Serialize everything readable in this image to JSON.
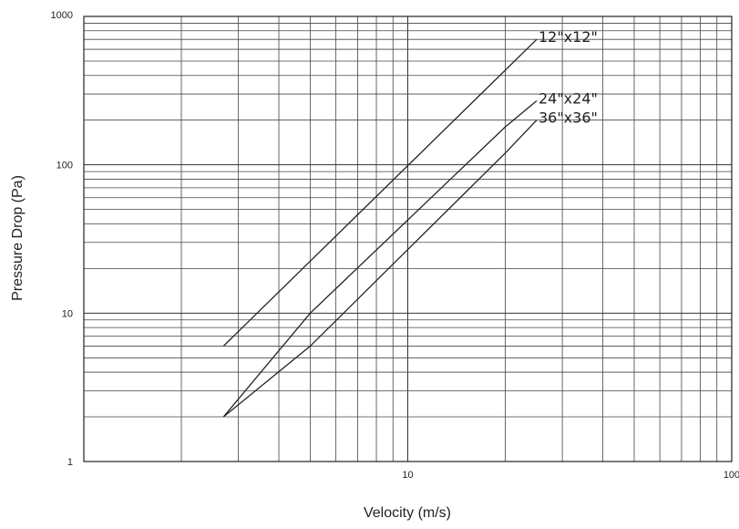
{
  "chart_data": {
    "type": "line",
    "title": "",
    "xlabel": "Velocity (m/s)",
    "ylabel": "Pressure Drop (Pa)",
    "x_scale": "log",
    "y_scale": "log",
    "xlim": [
      1,
      100
    ],
    "ylim": [
      1,
      1000
    ],
    "grid": true,
    "x_ticks": [
      {
        "value": 10,
        "label": "10"
      },
      {
        "value": 100,
        "label": "100"
      }
    ],
    "y_ticks": [
      {
        "value": 1,
        "label": "1"
      },
      {
        "value": 10,
        "label": "10"
      },
      {
        "value": 100,
        "label": "100"
      },
      {
        "value": 1000,
        "label": "1000"
      }
    ],
    "series": [
      {
        "name": "12\"x12\"",
        "x": [
          2.7,
          25
        ],
        "y": [
          6,
          700
        ]
      },
      {
        "name": "24\"x24\"",
        "x": [
          2.7,
          5,
          20,
          25
        ],
        "y": [
          2,
          10,
          180,
          270
        ]
      },
      {
        "name": "36\"x36\"",
        "x": [
          2.7,
          5,
          20,
          25
        ],
        "y": [
          2,
          6,
          120,
          200
        ]
      }
    ]
  }
}
